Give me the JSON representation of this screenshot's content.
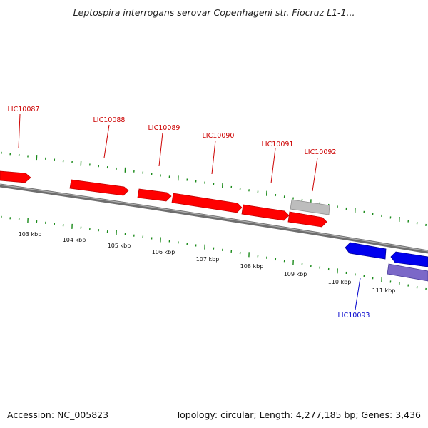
{
  "title": "Leptospira interrogans serovar Copenhageni str. Fiocruz L1-1...",
  "footer": {
    "accession": "Accession: NC_005823",
    "summary": "Topology: circular; Length: 4,277,185 bp; Genes: 3,436"
  },
  "colors": {
    "forward_gene": "#ff0000",
    "forward_label": "#cc0000",
    "reverse_gene": "#0000ee",
    "reverse_label": "#0000cc",
    "pseudo_gene": "#bbbbbb",
    "misc_feature": "#7b68c8",
    "backbone": "#808080",
    "ticks": "#1a8a1a"
  },
  "scale_labels": [
    "103 kbp",
    "104 kbp",
    "105 kbp",
    "106 kbp",
    "107 kbp",
    "108 kbp",
    "109 kbp",
    "110 kbp",
    "111 kbp"
  ],
  "genes": [
    {
      "label": "LIC10087",
      "strand": "forward"
    },
    {
      "label": "LIC10088",
      "strand": "forward"
    },
    {
      "label": "LIC10089",
      "strand": "forward"
    },
    {
      "label": "LIC10090",
      "strand": "forward"
    },
    {
      "label": "LIC10091",
      "strand": "forward"
    },
    {
      "label": "LIC10092",
      "strand": "forward"
    },
    {
      "label": "LIC10093",
      "strand": "reverse"
    }
  ]
}
